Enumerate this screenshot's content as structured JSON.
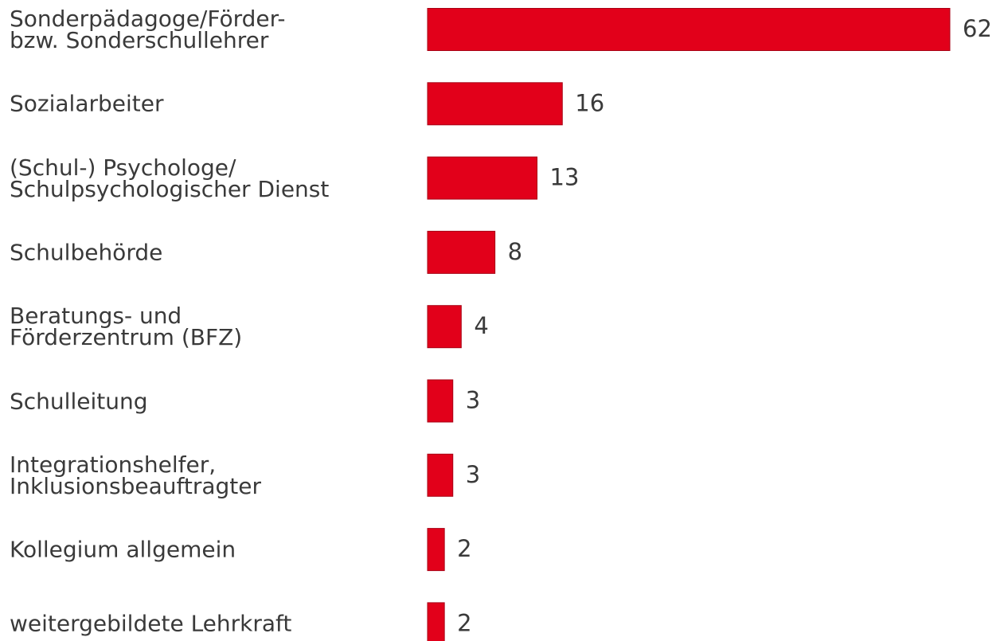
{
  "chart_data": {
    "type": "hbar",
    "categories": [
      "Sonderpädagoge/Förder-\nbzw. Sonderschullehrer",
      "Sozialarbeiter",
      "(Schul-) Psychologe/\nSchulpsychologischer Dienst",
      "Schulbehörde",
      "Beratungs- und\nFörderzentrum (BFZ)",
      "Schulleitung",
      "Integrationshelfer,\nInklusionsbeauftragter",
      "Kollegium allgemein",
      "weitergebildete Lehrkraft"
    ],
    "values": [
      62,
      16,
      13,
      8,
      4,
      3,
      3,
      2,
      2
    ],
    "color": "#e2001a"
  }
}
